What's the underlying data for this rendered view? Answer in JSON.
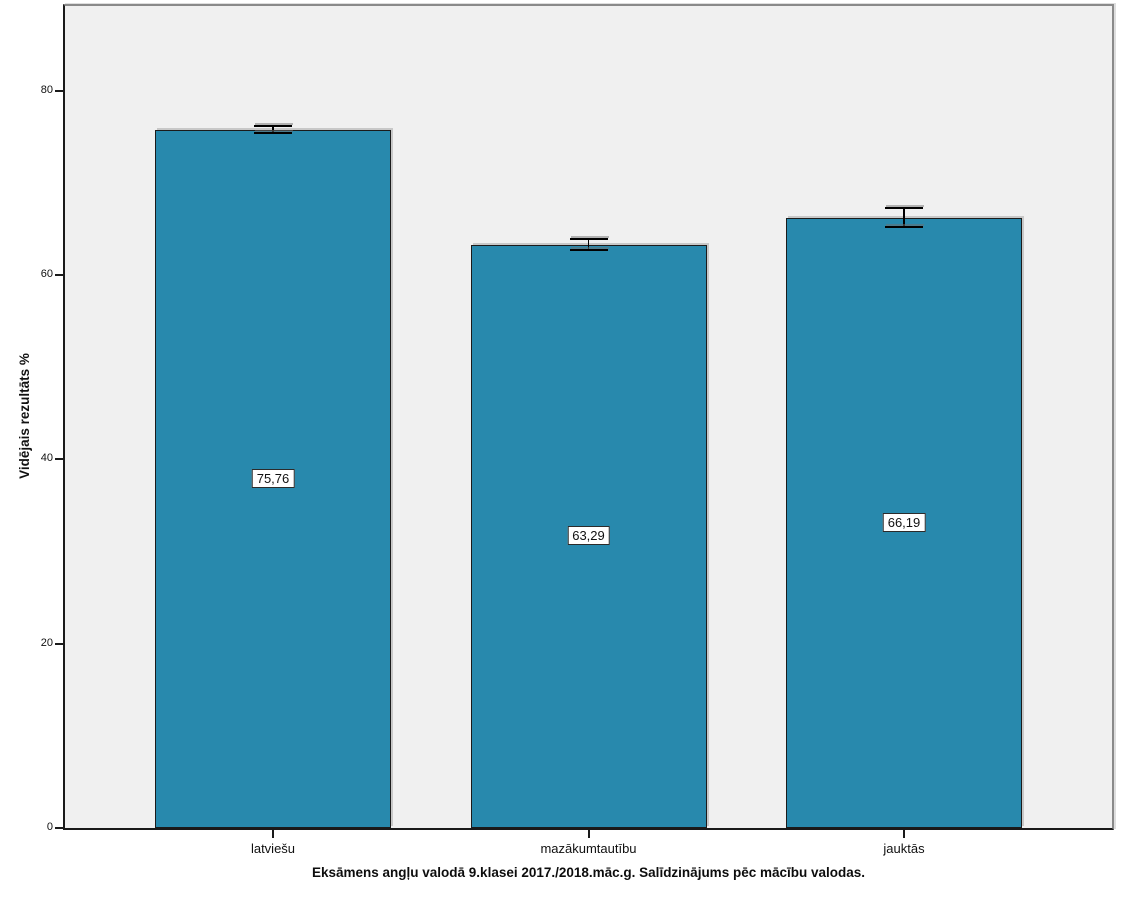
{
  "chart_data": {
    "type": "bar",
    "title": "",
    "caption": "Eksāmens angļu valodā 9.klasei 2017./2018.māc.g. Salīdzinājums pēc mācību valodas.",
    "ylabel": "Vidējais rezultāts %",
    "xlabel": "",
    "categories": [
      "latviešu",
      "mazākumtautību",
      "jauktās"
    ],
    "values": [
      75.76,
      63.29,
      66.19
    ],
    "value_labels": [
      "75,76",
      "63,29",
      "66,19"
    ],
    "errors": [
      0.42,
      0.6,
      1.05
    ],
    "error_bars": [
      {
        "low": 75.34,
        "high": 76.18
      },
      {
        "low": 62.69,
        "high": 63.89
      },
      {
        "low": 65.14,
        "high": 67.24
      }
    ],
    "y_ticks": [
      "0",
      "20",
      "40",
      "60",
      "80"
    ],
    "y_tick_values": [
      0,
      20,
      40,
      60,
      80
    ],
    "ylim": [
      0,
      89.4
    ],
    "grid": false,
    "legend": "none",
    "colors": {
      "bar_fill": "#2889AD",
      "bar_border": "#1b1b1b",
      "error_bar": "#000000",
      "plot_background": "#f0f0f0",
      "frame_top_right": "#8a8a8a",
      "axis_lines": "#1a1a1a",
      "value_label_background": "#ffffff",
      "value_label_border": "#2b2b2b",
      "text": "#111111"
    }
  }
}
